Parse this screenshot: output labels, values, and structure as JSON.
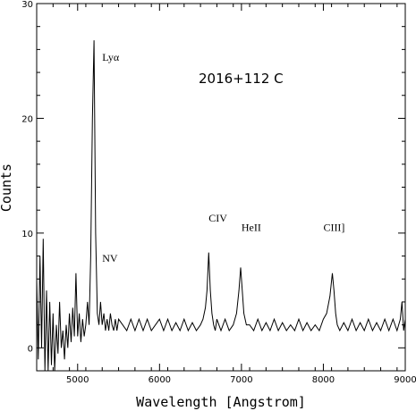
{
  "chart_data": {
    "type": "line",
    "title": "2016+112 C",
    "xlabel": "Wavelength [Angstrom]",
    "ylabel": "Counts",
    "xlim": [
      4500,
      9000
    ],
    "ylim": [
      -2,
      30
    ],
    "xticks": [
      5000,
      6000,
      7000,
      8000,
      9000
    ],
    "yticks": [
      0,
      10,
      20,
      30
    ],
    "annotations": [
      {
        "text": "Lyα",
        "x": 5300,
        "y": 25
      },
      {
        "text": "NV",
        "x": 5300,
        "y": 7.5
      },
      {
        "text": "CIV",
        "x": 6600,
        "y": 11
      },
      {
        "text": "HeII",
        "x": 7000,
        "y": 10.2
      },
      {
        "text": "CIII]",
        "x": 8000,
        "y": 10.2
      }
    ],
    "series": [
      {
        "x": [
          4500,
          4520,
          4540,
          4560,
          4580,
          4600,
          4620,
          4640,
          4660,
          4680,
          4700,
          4720,
          4740,
          4760,
          4780,
          4800,
          4820,
          4840,
          4860,
          4880,
          4900,
          4920,
          4940,
          4960,
          4980,
          5000,
          5020,
          5040,
          5060,
          5080,
          5100,
          5120,
          5140,
          5160,
          5180,
          5200,
          5220,
          5240,
          5260,
          5280,
          5300,
          5320,
          5340,
          5360,
          5380,
          5400,
          5420,
          5440,
          5460,
          5480,
          5500,
          5550,
          5600,
          5650,
          5700,
          5750,
          5800,
          5850,
          5900,
          5950,
          6000,
          6050,
          6100,
          6150,
          6200,
          6250,
          6300,
          6350,
          6400,
          6450,
          6500,
          6530,
          6560,
          6580,
          6600,
          6620,
          6640,
          6660,
          6680,
          6700,
          6750,
          6800,
          6850,
          6900,
          6940,
          6970,
          6990,
          7010,
          7030,
          7060,
          7100,
          7150,
          7200,
          7250,
          7300,
          7350,
          7400,
          7450,
          7500,
          7550,
          7600,
          7650,
          7700,
          7750,
          7800,
          7850,
          7900,
          7950,
          8000,
          8040,
          8080,
          8110,
          8130,
          8150,
          8170,
          8200,
          8250,
          8300,
          8350,
          8400,
          8450,
          8500,
          8550,
          8600,
          8650,
          8700,
          8750,
          8800,
          8850,
          8900,
          8940,
          8960,
          8980,
          9000
        ],
        "y": [
          6,
          -1,
          8,
          0,
          9.5,
          -2,
          5,
          -2,
          4,
          -1.5,
          3,
          -2,
          2,
          -0.5,
          4,
          0,
          1.5,
          -1,
          2,
          0,
          3,
          0.5,
          3.5,
          1,
          6.5,
          1,
          3,
          0.5,
          2.5,
          1,
          2,
          4,
          2,
          8,
          20,
          26.8,
          10,
          3,
          2,
          4,
          2,
          3,
          1.5,
          2.5,
          1.5,
          3,
          2,
          1.5,
          2.5,
          1.5,
          2.5,
          2,
          1.5,
          2.5,
          1.5,
          2.5,
          1.5,
          2.5,
          1.5,
          2,
          2.5,
          1.5,
          2.5,
          1.5,
          2.2,
          1.5,
          2.5,
          1.5,
          2.2,
          1.5,
          2,
          2.5,
          3.5,
          5,
          8.3,
          5,
          3,
          2,
          1.5,
          2.5,
          1.5,
          2.5,
          1.5,
          2,
          3,
          5,
          7,
          5,
          3,
          2,
          2,
          1.5,
          2.5,
          1.5,
          2.2,
          1.5,
          2.5,
          1.5,
          2.2,
          1.5,
          2,
          1.5,
          2.5,
          1.5,
          2.2,
          1.5,
          2,
          1.5,
          2.5,
          3,
          4.5,
          6.5,
          5,
          3,
          2,
          1.5,
          2.2,
          1.5,
          2.5,
          1.5,
          2.2,
          1.5,
          2.5,
          1.5,
          2.2,
          1.5,
          2.5,
          1.5,
          2.5,
          1.5,
          2.5,
          4,
          1.5,
          2.5
        ]
      }
    ]
  }
}
